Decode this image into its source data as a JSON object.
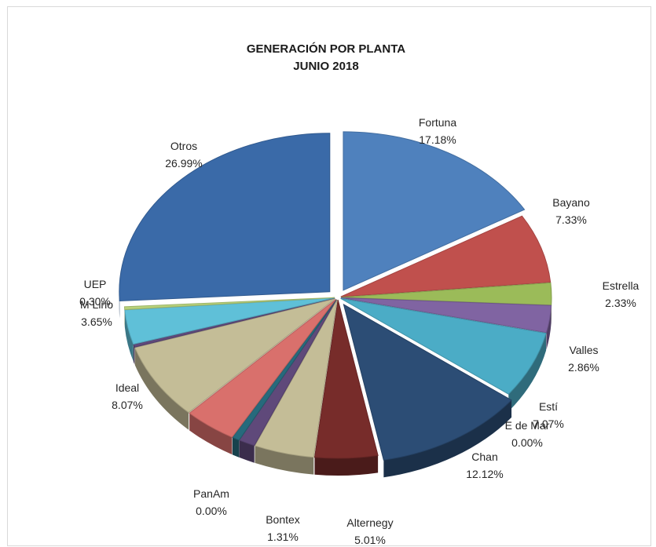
{
  "chart_data": {
    "type": "pie",
    "title": "GENERACIÓN POR PLANTA",
    "subtitle": "JUNIO 2018",
    "slices": [
      {
        "label": "Fortuna",
        "value": 17.18,
        "value_label": "17.18%",
        "color": "#4f81bd"
      },
      {
        "label": "Bayano",
        "value": 7.33,
        "value_label": "7.33%",
        "color": "#c0504d"
      },
      {
        "label": "Estrella",
        "value": 2.33,
        "value_label": "2.33%",
        "color": "#9bbb59"
      },
      {
        "label": "Valles",
        "value": 2.86,
        "value_label": "2.86%",
        "color": "#8064a2"
      },
      {
        "label": "Estí",
        "value": 7.07,
        "value_label": "7.07%",
        "color": "#4bacc6"
      },
      {
        "label": "E de Mar",
        "value": 0.0,
        "value_label": "0.00%",
        "color": "#f79646"
      },
      {
        "label": "Chan",
        "value": 12.12,
        "value_label": "12.12%",
        "color": "#2c4d75"
      },
      {
        "label": "Alternegy",
        "value": 5.01,
        "value_label": "5.01%",
        "color": "#772c2a"
      },
      {
        "label": "",
        "value": 4.8,
        "value_label": "",
        "color": "#c4bd97"
      },
      {
        "label": "Bontex",
        "value": 1.31,
        "value_label": "1.31%",
        "color": "#5f497a"
      },
      {
        "label": "",
        "value": 0.6,
        "value_label": "",
        "color": "#276a7c"
      },
      {
        "label": "PanAm",
        "value": 0.0,
        "value_label": "0.00%",
        "color": "#b65708"
      },
      {
        "label": "",
        "value": 4.2,
        "value_label": "",
        "color": "#d9706c"
      },
      {
        "label": "Ideal",
        "value": 8.07,
        "value_label": "8.07%",
        "color": "#c4bd97"
      },
      {
        "label": "",
        "value": 0.3,
        "value_label": "",
        "color": "#5f497a"
      },
      {
        "label": "M Lirio",
        "value": 3.65,
        "value_label": "3.65%",
        "color": "#5fc0d8"
      },
      {
        "label": "UEP",
        "value": 0.3,
        "value_label": "0.30%",
        "color": "#b8d27a"
      },
      {
        "label": "Otros",
        "value": 26.99,
        "value_label": "26.99%",
        "color": "#3a6aa8"
      }
    ]
  }
}
